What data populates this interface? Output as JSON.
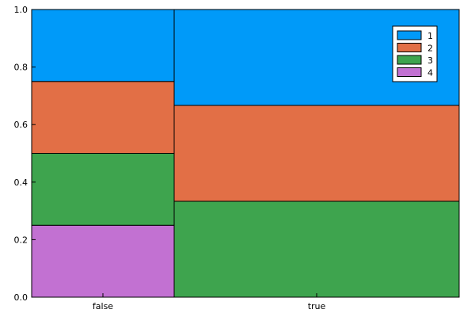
{
  "chart_data": {
    "type": "bar",
    "stacked": true,
    "variable_width": true,
    "categories": [
      "false",
      "true"
    ],
    "category_weights": [
      1,
      2
    ],
    "series": [
      {
        "name": "1",
        "color": "#009af9",
        "values": [
          0.25,
          0.3333
        ]
      },
      {
        "name": "2",
        "color": "#e26f46",
        "values": [
          0.25,
          0.3333
        ]
      },
      {
        "name": "3",
        "color": "#3ea44e",
        "values": [
          0.25,
          0.3334
        ]
      },
      {
        "name": "4",
        "color": "#c271d2",
        "values": [
          0.25,
          0.0
        ]
      }
    ],
    "ylim": [
      0,
      1
    ],
    "y_ticks": [
      "0.0",
      "0.2",
      "0.4",
      "0.6",
      "0.8",
      "1.0"
    ],
    "legend_position": "top-right",
    "grid": false
  }
}
